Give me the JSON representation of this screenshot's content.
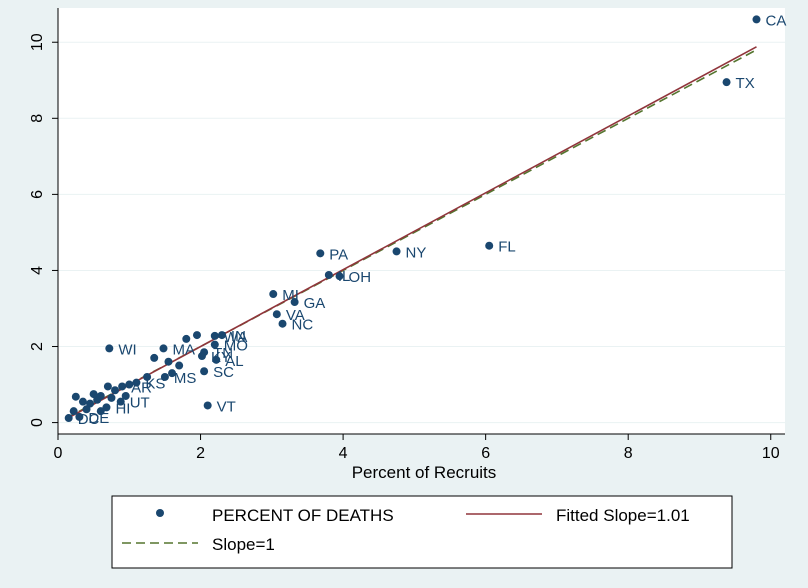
{
  "chart_data": {
    "type": "scatter",
    "title": "",
    "xlabel": "Percent of Recruits",
    "ylabel": "",
    "xlim": [
      0,
      10.2
    ],
    "ylim": [
      -0.3,
      10.9
    ],
    "xticks": [
      0,
      2,
      4,
      6,
      8,
      10
    ],
    "yticks": [
      0,
      2,
      4,
      6,
      8,
      10
    ],
    "grid": "horizontal",
    "legend_position": "bottom",
    "colors": {
      "background": "#eaf2f3",
      "plot_background": "#ffffff",
      "points": "#1a476f",
      "labels": "#1a476f",
      "fitted_line": "#90353b",
      "slope1_line": "#55752f",
      "grid": "#eaf2f3"
    },
    "series": [
      {
        "name": "PERCENT OF DEATHS",
        "type": "scatter",
        "points": [
          {
            "label": "CA",
            "x": 9.8,
            "y": 10.6
          },
          {
            "label": "TX",
            "x": 9.38,
            "y": 8.95
          },
          {
            "label": "FL",
            "x": 6.05,
            "y": 4.65
          },
          {
            "label": "NY",
            "x": 4.75,
            "y": 4.5
          },
          {
            "label": "PA",
            "x": 3.68,
            "y": 4.45
          },
          {
            "label": "OH",
            "x": 3.95,
            "y": 3.85
          },
          {
            "label": "IL",
            "x": 3.8,
            "y": 3.88
          },
          {
            "label": "MI",
            "x": 3.02,
            "y": 3.38
          },
          {
            "label": "GA",
            "x": 3.32,
            "y": 3.17
          },
          {
            "label": "VA",
            "x": 3.07,
            "y": 2.85
          },
          {
            "label": "NC",
            "x": 3.15,
            "y": 2.6
          },
          {
            "label": "IN",
            "x": 2.3,
            "y": 2.3
          },
          {
            "label": "WA",
            "x": 2.2,
            "y": 2.28
          },
          {
            "label": "MO",
            "x": 2.2,
            "y": 2.05
          },
          {
            "label": "TN",
            "x": 2.05,
            "y": 1.85
          },
          {
            "label": "AL",
            "x": 2.22,
            "y": 1.65
          },
          {
            "label": "KY",
            "x": 2.02,
            "y": 1.75
          },
          {
            "label": "MA",
            "x": 1.48,
            "y": 1.95
          },
          {
            "label": "SC",
            "x": 2.05,
            "y": 1.35
          },
          {
            "label": "WI",
            "x": 0.72,
            "y": 1.95
          },
          {
            "label": "VT",
            "x": 2.1,
            "y": 0.45
          },
          {
            "label": "MS",
            "x": 1.5,
            "y": 1.2
          },
          {
            "label": "KS",
            "x": 1.1,
            "y": 1.05
          },
          {
            "label": "AR",
            "x": 0.9,
            "y": 0.95
          },
          {
            "label": "UT",
            "x": 0.88,
            "y": 0.55
          },
          {
            "label": "HI",
            "x": 0.68,
            "y": 0.4
          },
          {
            "label": "DE",
            "x": 0.3,
            "y": 0.15
          },
          {
            "label": "DC",
            "x": 0.15,
            "y": 0.12
          },
          {
            "label": "",
            "x": 1.6,
            "y": 1.3
          },
          {
            "label": "",
            "x": 1.35,
            "y": 1.7
          },
          {
            "label": "",
            "x": 1.55,
            "y": 1.6
          },
          {
            "label": "",
            "x": 1.7,
            "y": 1.5
          },
          {
            "label": "",
            "x": 1.8,
            "y": 2.2
          },
          {
            "label": "",
            "x": 1.95,
            "y": 2.3
          },
          {
            "label": "",
            "x": 1.25,
            "y": 1.2
          },
          {
            "label": "",
            "x": 1.0,
            "y": 1.0
          },
          {
            "label": "",
            "x": 0.8,
            "y": 0.85
          },
          {
            "label": "",
            "x": 0.7,
            "y": 0.95
          },
          {
            "label": "",
            "x": 0.6,
            "y": 0.7
          },
          {
            "label": "",
            "x": 0.55,
            "y": 0.6
          },
          {
            "label": "",
            "x": 0.5,
            "y": 0.75
          },
          {
            "label": "",
            "x": 0.45,
            "y": 0.5
          },
          {
            "label": "",
            "x": 0.4,
            "y": 0.35
          },
          {
            "label": "",
            "x": 0.35,
            "y": 0.55
          },
          {
            "label": "",
            "x": 0.25,
            "y": 0.68
          },
          {
            "label": "",
            "x": 0.22,
            "y": 0.3
          },
          {
            "label": "",
            "x": 0.6,
            "y": 0.3
          },
          {
            "label": "",
            "x": 0.75,
            "y": 0.65
          },
          {
            "label": "",
            "x": 0.95,
            "y": 0.7
          }
        ]
      },
      {
        "name": "Fitted Slope=1.01",
        "type": "line",
        "style": "solid",
        "x": [
          0.12,
          9.8
        ],
        "y": [
          0.1,
          9.88
        ]
      },
      {
        "name": "Slope=1",
        "type": "line",
        "style": "dashed",
        "x": [
          0.12,
          9.8
        ],
        "y": [
          0.12,
          9.8
        ]
      }
    ]
  }
}
